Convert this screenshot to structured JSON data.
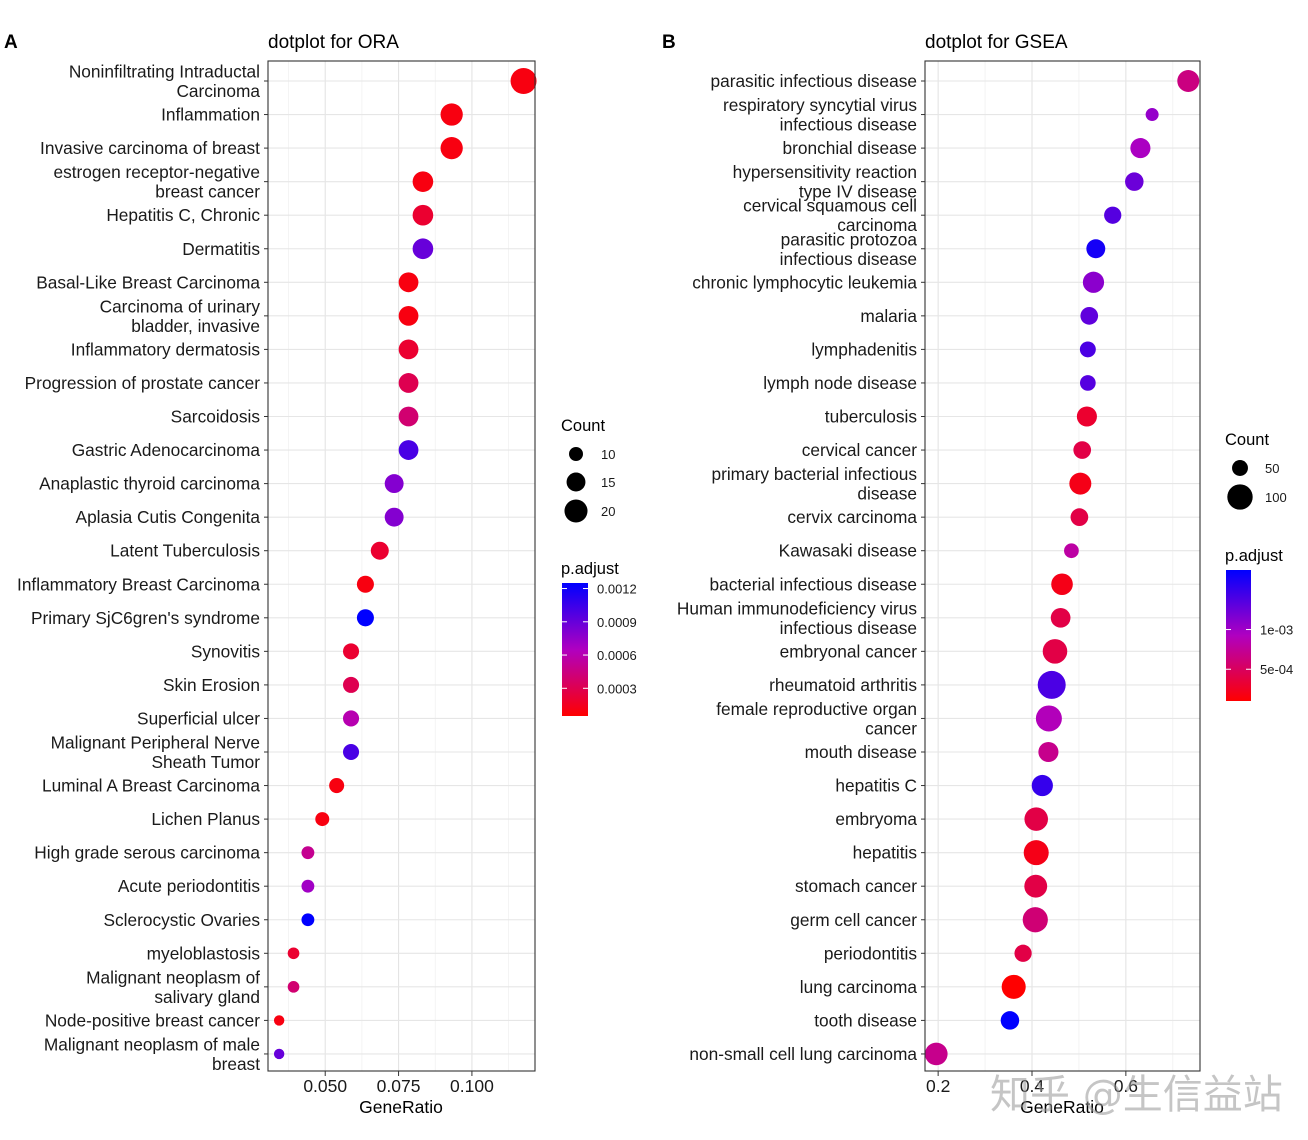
{
  "watermark": "知乎 @生信益站",
  "chart_data": [
    {
      "type": "scatter",
      "panel_label": "A",
      "title": "dotplot for ORA",
      "xlabel": "GeneRatio",
      "ylabel": "",
      "xlim": [
        0.0305,
        0.1215
      ],
      "xticks": [
        0.05,
        0.075,
        0.1
      ],
      "xtick_labels": [
        "0.050",
        "0.075",
        "0.100"
      ],
      "grid": true,
      "categories": [
        "Noninfiltrating Intraductal\nCarcinoma",
        "Inflammation",
        "Invasive carcinoma of breast",
        "estrogen receptor-negative\nbreast cancer",
        "Hepatitis C, Chronic",
        "Dermatitis",
        "Basal-Like Breast Carcinoma",
        "Carcinoma of urinary\nbladder, invasive",
        "Inflammatory dermatosis",
        "Progression of prostate cancer",
        "Sarcoidosis",
        "Gastric Adenocarcinoma",
        "Anaplastic thyroid carcinoma",
        "Aplasia Cutis Congenita",
        "Latent Tuberculosis",
        "Inflammatory Breast Carcinoma",
        "Primary SjC6gren's syndrome",
        "Synovitis",
        "Skin Erosion",
        "Superficial ulcer",
        "Malignant Peripheral Nerve\nSheath Tumor",
        "Luminal A Breast Carcinoma",
        "Lichen Planus",
        "High grade serous carcinoma",
        "Acute periodontitis",
        "Sclerocystic Ovaries",
        "myeloblastosis",
        "Malignant neoplasm of\nsalivary gland",
        "Node-positive breast cancer",
        "Malignant neoplasm of male\nbreast"
      ],
      "gene_ratio": [
        0.1176,
        0.0931,
        0.0931,
        0.0833,
        0.0833,
        0.0833,
        0.0784,
        0.0784,
        0.0784,
        0.0784,
        0.0784,
        0.0784,
        0.0735,
        0.0735,
        0.0686,
        0.0637,
        0.0637,
        0.0588,
        0.0588,
        0.0588,
        0.0588,
        0.0539,
        0.049,
        0.0441,
        0.0441,
        0.0441,
        0.0392,
        0.0392,
        0.0343,
        0.0343
      ],
      "count": [
        24,
        19,
        19,
        17,
        17,
        17,
        16,
        16,
        16,
        16,
        16,
        16,
        15,
        15,
        14,
        13,
        13,
        12,
        12,
        12,
        12,
        11,
        10,
        9,
        9,
        9,
        8,
        8,
        7,
        7
      ],
      "p_adjust": [
        0.0001,
        0.0001,
        0.0001,
        0.0001,
        0.0002,
        0.0009,
        0.0001,
        0.0001,
        0.0002,
        0.0003,
        0.0004,
        0.001,
        0.0008,
        0.0008,
        0.0002,
        0.0001,
        0.0013,
        0.0002,
        0.0003,
        0.0006,
        0.001,
        0.0001,
        0.0001,
        0.0005,
        0.0007,
        0.0013,
        0.0002,
        0.0004,
        0.0001,
        0.0009
      ],
      "size_legend": {
        "title": "Count",
        "values": [
          10,
          15,
          20
        ],
        "labels": [
          "10",
          "15",
          "20"
        ]
      },
      "color_legend": {
        "title": "p.adjust",
        "range": [
          5e-05,
          0.00125
        ],
        "ticks": [
          0.0012,
          0.0009,
          0.0006,
          0.0003
        ],
        "tick_labels": [
          "0.0012",
          "0.0009",
          "0.0006",
          "0.0003"
        ]
      },
      "legend_position": "right"
    },
    {
      "type": "scatter",
      "panel_label": "B",
      "title": "dotplot for GSEA",
      "xlabel": "GeneRatio",
      "ylabel": "",
      "xlim": [
        0.172,
        0.758
      ],
      "xticks": [
        0.2,
        0.4,
        0.6
      ],
      "xtick_labels": [
        "0.2",
        "0.4",
        "0.6"
      ],
      "grid": true,
      "categories": [
        "parasitic infectious disease",
        "respiratory syncytial virus\ninfectious disease",
        "bronchial disease",
        "hypersensitivity reaction\ntype IV disease",
        "cervical squamous cell\ncarcinoma",
        "parasitic protozoa\ninfectious disease",
        "chronic lymphocytic leukemia",
        "malaria",
        "lymphadenitis",
        "lymph node disease",
        "tuberculosis",
        "cervical cancer",
        "primary bacterial infectious\ndisease",
        "cervix carcinoma",
        "Kawasaki disease",
        "bacterial infectious disease",
        "Human immunodeficiency virus\ninfectious disease",
        "embryonal cancer",
        "rheumatoid arthritis",
        "female reproductive organ\ncancer",
        "mouth disease",
        "hepatitis C",
        "embryoma",
        "hepatitis",
        "stomach cancer",
        "germ cell cancer",
        "periodontitis",
        "lung carcinoma",
        "tooth disease",
        "non-small cell lung carcinoma"
      ],
      "gene_ratio": [
        0.733,
        0.656,
        0.631,
        0.618,
        0.572,
        0.536,
        0.531,
        0.522,
        0.519,
        0.519,
        0.517,
        0.507,
        0.503,
        0.501,
        0.484,
        0.464,
        0.461,
        0.449,
        0.442,
        0.436,
        0.435,
        0.422,
        0.409,
        0.409,
        0.408,
        0.407,
        0.381,
        0.361,
        0.353,
        0.196
      ],
      "count": [
        80,
        38,
        70,
        62,
        56,
        64,
        76,
        58,
        50,
        49,
        70,
        58,
        80,
        58,
        45,
        78,
        68,
        95,
        117,
        104,
        70,
        76,
        89,
        98,
        85,
        99,
        56,
        92,
        62,
        84
      ],
      "p_adjust": [
        0.00065,
        0.00105,
        0.00095,
        0.00125,
        0.00135,
        0.00165,
        0.0011,
        0.0013,
        0.0014,
        0.00135,
        0.0003,
        0.0004,
        0.0002,
        0.0004,
        0.0008,
        0.0002,
        0.0004,
        0.0004,
        0.0014,
        0.0009,
        0.0007,
        0.0015,
        0.0004,
        0.0002,
        0.0004,
        0.0006,
        0.0004,
        0.0001,
        0.0018,
        0.0007
      ],
      "size_legend": {
        "title": "Count",
        "values": [
          50,
          100
        ],
        "labels": [
          "50",
          "100"
        ]
      },
      "color_legend": {
        "title": "p.adjust",
        "range": [
          0.0001,
          0.00175
        ],
        "ticks": [
          0.001,
          0.0005
        ],
        "tick_labels": [
          "1e-03",
          "5e-04"
        ]
      },
      "legend_position": "right"
    }
  ]
}
